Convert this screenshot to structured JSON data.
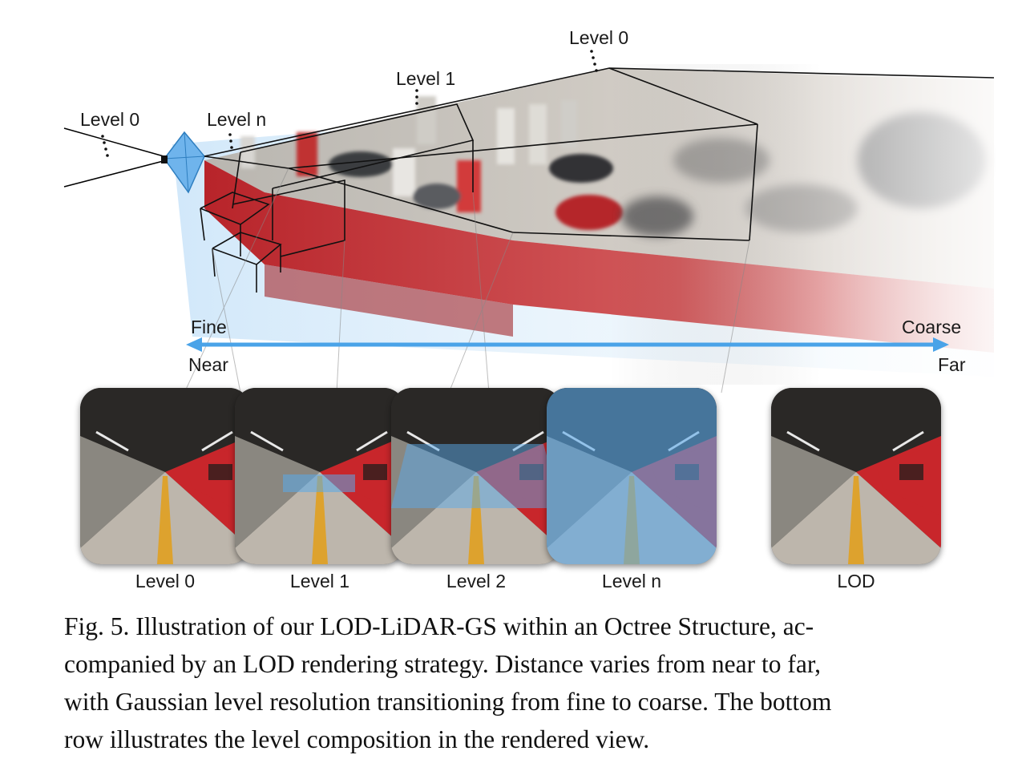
{
  "figure": {
    "top_labels": {
      "camera_level0": "Level 0",
      "camera_leveln": "Level n",
      "box_level1": "Level 1",
      "box_level0": "Level 0"
    },
    "axis": {
      "fine": "Fine",
      "coarse": "Coarse",
      "near": "Near",
      "far": "Far",
      "arrow_color": "#4aa3e8"
    },
    "thumbnails": [
      {
        "label": "Level 0",
        "overlay": "none"
      },
      {
        "label": "Level 1",
        "overlay": "far"
      },
      {
        "label": "Level 2",
        "overlay": "mid"
      },
      {
        "label": "Level n",
        "overlay": "full"
      },
      {
        "label": "LOD",
        "overlay": "none"
      }
    ],
    "colors": {
      "overlay_blue": "#5aa9ea",
      "wall_red": "#c8262b",
      "lane_yellow": "#e0a020"
    }
  },
  "caption": {
    "lines": [
      "Fig. 5.  Illustration of our LOD-LiDAR-GS within an Octree Structure, ac-",
      "companied by an LOD rendering strategy. Distance varies from near to far,",
      "with Gaussian level resolution transitioning from fine to coarse. The bottom",
      "row illustrates the level composition in the rendered view."
    ]
  }
}
